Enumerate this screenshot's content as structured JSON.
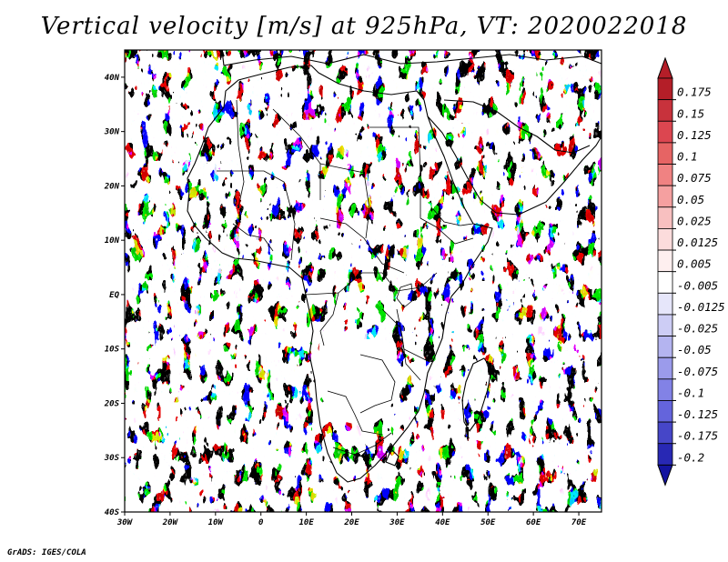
{
  "title": "Vertical velocity [m/s] at 925hPa, VT: 2020022018",
  "footer": "GrADS: IGES/COLA",
  "map": {
    "lon_range": [
      -30,
      75
    ],
    "lat_range": [
      -40,
      45
    ],
    "lon_ticks": [
      {
        "value": -30,
        "label": "30W"
      },
      {
        "value": -20,
        "label": "20W"
      },
      {
        "value": -10,
        "label": "10W"
      },
      {
        "value": 0,
        "label": "0"
      },
      {
        "value": 10,
        "label": "10E"
      },
      {
        "value": 20,
        "label": "20E"
      },
      {
        "value": 30,
        "label": "30E"
      },
      {
        "value": 40,
        "label": "40E"
      },
      {
        "value": 50,
        "label": "50E"
      },
      {
        "value": 60,
        "label": "60E"
      },
      {
        "value": 70,
        "label": "70E"
      }
    ],
    "lat_ticks": [
      {
        "value": 40,
        "label": "40N"
      },
      {
        "value": 30,
        "label": "30N"
      },
      {
        "value": 20,
        "label": "20N"
      },
      {
        "value": 10,
        "label": "10N"
      },
      {
        "value": 0,
        "label": "EQ"
      },
      {
        "value": -10,
        "label": "10S"
      },
      {
        "value": -20,
        "label": "20S"
      },
      {
        "value": -30,
        "label": "30S"
      },
      {
        "value": -40,
        "label": "40S"
      }
    ]
  },
  "colorbar": {
    "levels": [
      {
        "label": "0.175",
        "color": "#b41e28"
      },
      {
        "label": "0.15",
        "color": "#c8323c"
      },
      {
        "label": "0.125",
        "color": "#dc4650"
      },
      {
        "label": "0.1",
        "color": "#e66464"
      },
      {
        "label": "0.075",
        "color": "#f08282"
      },
      {
        "label": "0.05",
        "color": "#f5a0a0"
      },
      {
        "label": "0.025",
        "color": "#f8c0c0"
      },
      {
        "label": "0.0125",
        "color": "#fcdcdc"
      },
      {
        "label": "0.005",
        "color": "#feefef"
      },
      {
        "label": "-0.005",
        "color": "#ffffff"
      },
      {
        "label": "-0.0125",
        "color": "#e6e6fa"
      },
      {
        "label": "-0.025",
        "color": "#cdcdf5"
      },
      {
        "label": "-0.05",
        "color": "#b4b4f0"
      },
      {
        "label": "-0.075",
        "color": "#9b9beb"
      },
      {
        "label": "-0.1",
        "color": "#8282e6"
      },
      {
        "label": "-0.125",
        "color": "#6464dc"
      },
      {
        "label": "-0.175",
        "color": "#4646c8"
      },
      {
        "label": "-0.2",
        "color": "#2828b4"
      }
    ],
    "bottom_color": "#1414a0"
  }
}
